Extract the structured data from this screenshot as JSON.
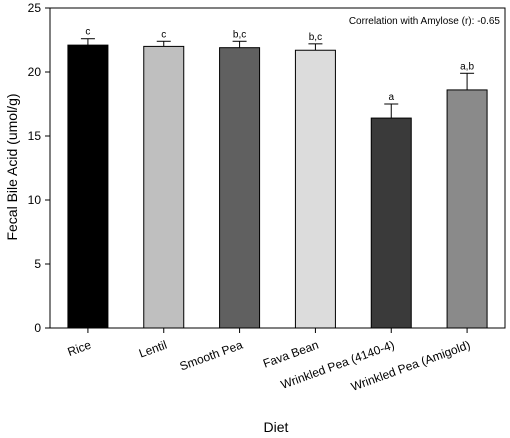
{
  "chart_data": {
    "type": "bar",
    "categories": [
      "Rice",
      "Lentil",
      "Smooth Pea",
      "Fava Bean",
      "Wrinkled Pea (4140-4)",
      "Wrinkled Pea (Amigold)"
    ],
    "values": [
      22.1,
      22.0,
      21.9,
      21.7,
      16.4,
      18.6
    ],
    "errors": [
      0.5,
      0.4,
      0.5,
      0.5,
      1.1,
      1.3
    ],
    "significance": [
      "c",
      "c",
      "b,c",
      "b,c",
      "a",
      "a,b"
    ],
    "bar_colors": [
      "#000000",
      "#bfbfbf",
      "#606060",
      "#dcdcdc",
      "#3a3a3a",
      "#8a8a8a"
    ],
    "xlabel": "Diet",
    "ylabel": "Fecal Bile Acid (umol/g)",
    "ylim": [
      0,
      25
    ],
    "yticks": [
      "0",
      "5",
      "10",
      "15",
      "20",
      "25"
    ],
    "annotation": "Correlation with Amylose (r): -0.65",
    "grid": false,
    "legend": "none"
  }
}
